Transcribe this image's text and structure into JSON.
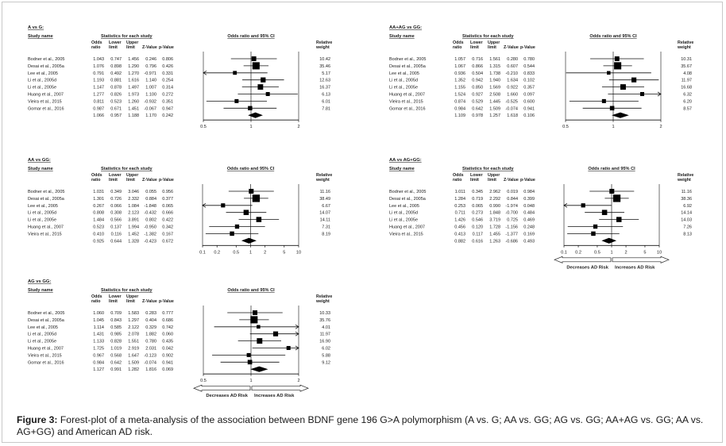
{
  "caption": {
    "label": "Figure 3:",
    "text": "Forest-plot of a meta-analysis of the association between BDNF gene 196 G>A polymorphism (A vs. G; AA vs. GG; AG vs. GG; AA+AG vs. GG; AA vs. AG+GG) and American AD risk."
  },
  "headers": {
    "study_name": "Study name",
    "statistics": "Statistics for each study",
    "odds_ratio": "Odds ratio",
    "lower_limit": "Lower limit",
    "upper_limit": "Upper limit",
    "z_value": "Z-Value",
    "p_value": "p-Value",
    "or_ci": "Odds ratio and 95% CI",
    "relative_weight": "Relative weight"
  },
  "risk_labels": {
    "decreases": "Decreases AD Risk",
    "increases": "Increases AD Risk"
  },
  "chart_data": [
    {
      "type": "forest",
      "title": "A vs G:",
      "x_scale": "log",
      "xlim": [
        0.5,
        2
      ],
      "ticks": [
        "0.5",
        "1",
        "2"
      ],
      "columns": [
        "Odds ratio",
        "Lower limit",
        "Upper limit",
        "Z-Value",
        "p-Value",
        "Relative weight"
      ],
      "studies": [
        {
          "name": "Bodner et al., 2005",
          "or": "1.043",
          "lower": "0.747",
          "upper": "1.456",
          "z": "0.246",
          "p": "0.806",
          "weight": "10.42"
        },
        {
          "name": "Desai et al., 2005a",
          "or": "1.076",
          "lower": "0.898",
          "upper": "1.290",
          "z": "0.796",
          "p": "0.426",
          "weight": "35.46"
        },
        {
          "name": "Lee et al., 2005",
          "or": "0.791",
          "lower": "0.492",
          "upper": "1.270",
          "z": "-0.971",
          "p": "0.331",
          "weight": "5.17"
        },
        {
          "name": "Li et al., 2005d",
          "or": "1.193",
          "lower": "0.881",
          "upper": "1.616",
          "z": "1.140",
          "p": "0.254",
          "weight": "12.63"
        },
        {
          "name": "Li et al., 2005e",
          "or": "1.147",
          "lower": "0.878",
          "upper": "1.497",
          "z": "1.007",
          "p": "0.314",
          "weight": "16.37"
        },
        {
          "name": "Huang et al., 2007",
          "or": "1.277",
          "lower": "0.826",
          "upper": "1.973",
          "z": "1.100",
          "p": "0.272",
          "weight": "6.13"
        },
        {
          "name": "Vieira et al., 2015",
          "or": "0.811",
          "lower": "0.523",
          "upper": "1.260",
          "z": "-0.932",
          "p": "0.351",
          "weight": "6.01"
        },
        {
          "name": "Gomar et al., 2016",
          "or": "0.987",
          "lower": "0.671",
          "upper": "1.451",
          "z": "-0.067",
          "p": "0.947",
          "weight": "7.81"
        }
      ],
      "pooled": {
        "or": "1.066",
        "lower": "0.957",
        "upper": "1.188",
        "z": "1.170",
        "p": "0.242"
      },
      "risk_arrows": false
    },
    {
      "type": "forest",
      "title": "AA+AG vs GG:",
      "x_scale": "log",
      "xlim": [
        0.5,
        2
      ],
      "ticks": [
        "0.5",
        "1",
        "2"
      ],
      "columns": [
        "Odds ratio",
        "Lower limit",
        "Upper limit",
        "Z-Value",
        "p-Value",
        "Relative weight"
      ],
      "studies": [
        {
          "name": "Bodner et al., 2005",
          "or": "1.057",
          "lower": "0.716",
          "upper": "1.561",
          "z": "0.280",
          "p": "0.780",
          "weight": "10.31"
        },
        {
          "name": "Desai et al., 2005a",
          "or": "1.067",
          "lower": "0.866",
          "upper": "1.315",
          "z": "0.607",
          "p": "0.544",
          "weight": "35.67"
        },
        {
          "name": "Lee et al., 2005",
          "or": "0.936",
          "lower": "0.504",
          "upper": "1.738",
          "z": "-0.210",
          "p": "0.833",
          "weight": "4.08"
        },
        {
          "name": "Li et al., 2005d",
          "or": "1.352",
          "lower": "0.942",
          "upper": "1.940",
          "z": "1.634",
          "p": "0.102",
          "weight": "11.97"
        },
        {
          "name": "Li et al., 2005e",
          "or": "1.155",
          "lower": "0.850",
          "upper": "1.569",
          "z": "0.922",
          "p": "0.357",
          "weight": "16.68"
        },
        {
          "name": "Huang et al., 2007",
          "or": "1.524",
          "lower": "0.927",
          "upper": "2.508",
          "z": "1.660",
          "p": "0.097",
          "weight": "6.32"
        },
        {
          "name": "Vieira et al., 2015",
          "or": "0.874",
          "lower": "0.529",
          "upper": "1.445",
          "z": "-0.525",
          "p": "0.600",
          "weight": "6.20"
        },
        {
          "name": "Gomar et al., 2016",
          "or": "0.984",
          "lower": "0.642",
          "upper": "1.509",
          "z": "-0.074",
          "p": "0.941",
          "weight": "8.57"
        }
      ],
      "pooled": {
        "or": "1.109",
        "lower": "0.978",
        "upper": "1.257",
        "z": "1.618",
        "p": "0.106"
      },
      "risk_arrows": false
    },
    {
      "type": "forest",
      "title": "AA vs GG:",
      "x_scale": "log",
      "xlim": [
        0.1,
        10
      ],
      "ticks": [
        "0.1",
        "0.2",
        "0.5",
        "1",
        "2",
        "5",
        "10"
      ],
      "columns": [
        "Odds ratio",
        "Lower limit",
        "Upper limit",
        "Z-Value",
        "p-Value",
        "Relative weight"
      ],
      "studies": [
        {
          "name": "Bodner et al., 2005",
          "or": "1.031",
          "lower": "0.349",
          "upper": "3.046",
          "z": "0.055",
          "p": "0.956",
          "weight": "11.16"
        },
        {
          "name": "Desai et al., 2005a",
          "or": "1.301",
          "lower": "0.726",
          "upper": "2.332",
          "z": "0.884",
          "p": "0.377",
          "weight": "38.49"
        },
        {
          "name": "Lee et al., 2005",
          "or": "0.267",
          "lower": "0.066",
          "upper": "1.084",
          "z": "-1.848",
          "p": "0.065",
          "weight": "6.67"
        },
        {
          "name": "Li et al., 2005d",
          "or": "0.808",
          "lower": "0.308",
          "upper": "2.123",
          "z": "-0.432",
          "p": "0.666",
          "weight": "14.07"
        },
        {
          "name": "Li et al., 2005e",
          "or": "1.484",
          "lower": "0.566",
          "upper": "3.891",
          "z": "0.802",
          "p": "0.422",
          "weight": "14.11"
        },
        {
          "name": "Huang et al., 2007",
          "or": "0.523",
          "lower": "0.137",
          "upper": "1.994",
          "z": "-0.950",
          "p": "0.342",
          "weight": "7.31"
        },
        {
          "name": "Vieira et al., 2015",
          "or": "0.410",
          "lower": "0.116",
          "upper": "1.452",
          "z": "-1.382",
          "p": "0.167",
          "weight": "8.19"
        }
      ],
      "pooled": {
        "or": "0.925",
        "lower": "0.644",
        "upper": "1.328",
        "z": "-0.423",
        "p": "0.672"
      },
      "risk_arrows": false
    },
    {
      "type": "forest",
      "title": "AA vs AG+GG:",
      "x_scale": "log",
      "xlim": [
        0.1,
        10
      ],
      "ticks": [
        "0.1",
        "0.2",
        "0.5",
        "1",
        "2",
        "5",
        "10"
      ],
      "columns": [
        "Odds ratio",
        "Lower limit",
        "Upper limit",
        "Z-Value",
        "p-Value",
        "Relative weight"
      ],
      "studies": [
        {
          "name": "Bodner et al., 2005",
          "or": "1.011",
          "lower": "0.345",
          "upper": "2.962",
          "z": "0.019",
          "p": "0.984",
          "weight": "11.16"
        },
        {
          "name": "Desai et al., 2005a",
          "or": "1.284",
          "lower": "0.719",
          "upper": "2.292",
          "z": "0.844",
          "p": "0.399",
          "weight": "38.36"
        },
        {
          "name": "Lee et al., 2005",
          "or": "0.253",
          "lower": "0.065",
          "upper": "0.990",
          "z": "-1.974",
          "p": "0.048",
          "weight": "6.92"
        },
        {
          "name": "Li et al., 2005d",
          "or": "0.711",
          "or_note": "",
          "lower": "0.273",
          "upper": "1.848",
          "z": "-0.700",
          "p": "0.484",
          "weight": "14.14"
        },
        {
          "name": "Li et al., 2005e",
          "or": "1.426",
          "lower": "0.546",
          "upper": "3.719",
          "z": "0.725",
          "p": "0.469",
          "weight": "14.03"
        },
        {
          "name": "Huang et al., 2007",
          "or": "0.456",
          "lower": "0.120",
          "upper": "1.728",
          "z": "-1.156",
          "p": "0.248",
          "weight": "7.26"
        },
        {
          "name": "Vieira et al., 2015",
          "or": "0.413",
          "lower": "0.117",
          "upper": "1.455",
          "z": "-1.377",
          "p": "0.169",
          "weight": "8.13"
        }
      ],
      "pooled": {
        "or": "0.882",
        "lower": "0.616",
        "upper": "1.263",
        "z": "-0.686",
        "p": "0.493"
      },
      "risk_arrows": true
    },
    {
      "type": "forest",
      "title": "AG vs GG:",
      "x_scale": "log",
      "xlim": [
        0.5,
        2
      ],
      "ticks": [
        "0.5",
        "1",
        "2"
      ],
      "columns": [
        "Odds ratio",
        "Lower limit",
        "Upper limit",
        "Z-Value",
        "p-Value",
        "Relative weight"
      ],
      "studies": [
        {
          "name": "Bodner et al., 2005",
          "or": "1.060",
          "lower": "0.709",
          "upper": "1.583",
          "z": "0.283",
          "p": "0.777",
          "weight": "10.33"
        },
        {
          "name": "Desai et al., 2005a",
          "or": "1.045",
          "lower": "0.843",
          "upper": "1.297",
          "z": "0.404",
          "p": "0.686",
          "weight": "35.76"
        },
        {
          "name": "Lee et al., 2005",
          "or": "1.114",
          "lower": "0.585",
          "upper": "2.122",
          "z": "0.329",
          "p": "0.742",
          "weight": "4.01"
        },
        {
          "name": "Li et al., 2005d",
          "or": "1.431",
          "lower": "0.985",
          "upper": "2.078",
          "z": "1.882",
          "p": "0.060",
          "weight": "11.97"
        },
        {
          "name": "Li et al., 2005e",
          "or": "1.133",
          "lower": "0.828",
          "upper": "1.551",
          "z": "0.780",
          "p": "0.435",
          "weight": "16.90"
        },
        {
          "name": "Huang et al., 2007",
          "or": "1.725",
          "lower": "1.019",
          "upper": "2.919",
          "z": "2.031",
          "p": "0.042",
          "weight": "6.02"
        },
        {
          "name": "Vieira et al., 2015",
          "or": "0.967",
          "lower": "0.568",
          "upper": "1.647",
          "z": "-0.123",
          "p": "0.902",
          "weight": "5.88"
        },
        {
          "name": "Gomar et al., 2016",
          "or": "0.984",
          "lower": "0.642",
          "upper": "1.509",
          "z": "-0.074",
          "p": "0.941",
          "weight": "9.12"
        }
      ],
      "pooled": {
        "or": "1.127",
        "lower": "0.991",
        "upper": "1.282",
        "z": "1.816",
        "p": "0.069"
      },
      "risk_arrows": true
    }
  ]
}
